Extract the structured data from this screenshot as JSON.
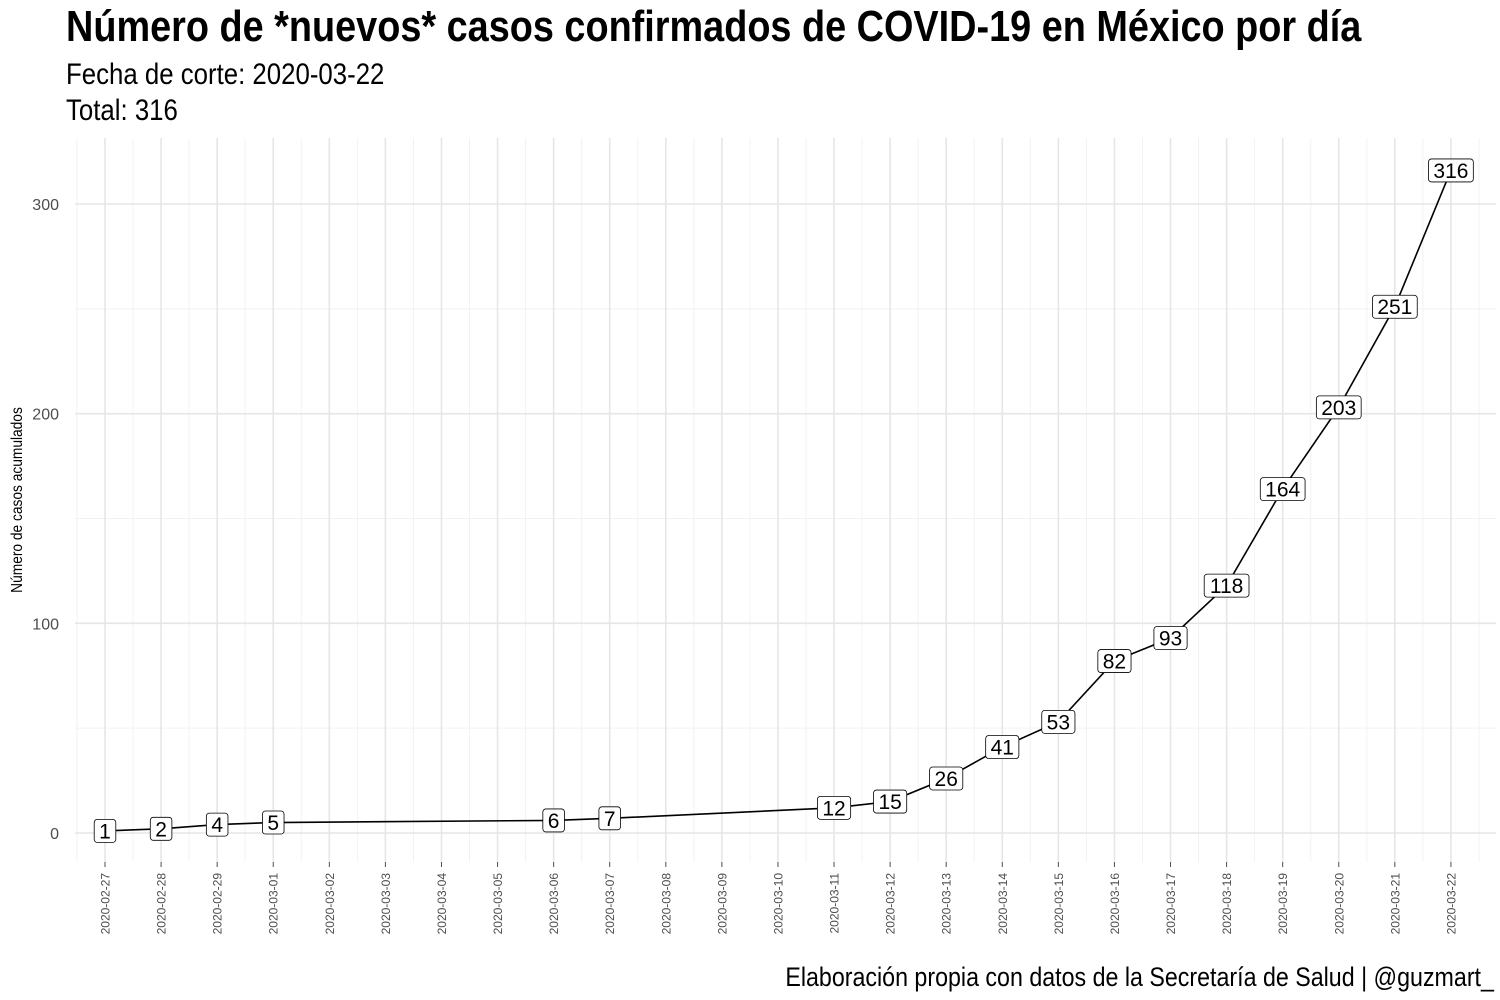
{
  "chart_data": {
    "type": "line",
    "title": "Número de *nuevos* casos confirmados de COVID-19 en México por día",
    "subtitle_fecha": "Fecha de corte: 2020-03-22",
    "subtitle_total": "Total: 316",
    "caption": "Elaboración propia con datos de la Secretaría de Salud | @guzmart_",
    "xlabel": "",
    "ylabel": "Número de casos acumulados",
    "x_ticks": [
      "2020-02-27",
      "2020-02-28",
      "2020-02-29",
      "2020-03-01",
      "2020-03-02",
      "2020-03-03",
      "2020-03-04",
      "2020-03-05",
      "2020-03-06",
      "2020-03-07",
      "2020-03-08",
      "2020-03-09",
      "2020-03-10",
      "2020-03-11",
      "2020-03-12",
      "2020-03-13",
      "2020-03-14",
      "2020-03-15",
      "2020-03-16",
      "2020-03-17",
      "2020-03-18",
      "2020-03-19",
      "2020-03-20",
      "2020-03-21",
      "2020-03-22"
    ],
    "y_ticks": [
      0,
      100,
      200,
      300
    ],
    "ylim": [
      -14,
      331
    ],
    "grid": true,
    "series": [
      {
        "points": [
          {
            "x": "2020-02-27",
            "y": 1
          },
          {
            "x": "2020-02-28",
            "y": 2
          },
          {
            "x": "2020-02-29",
            "y": 4
          },
          {
            "x": "2020-03-01",
            "y": 5
          },
          {
            "x": "2020-03-06",
            "y": 6
          },
          {
            "x": "2020-03-07",
            "y": 7
          },
          {
            "x": "2020-03-11",
            "y": 12
          },
          {
            "x": "2020-03-12",
            "y": 15
          },
          {
            "x": "2020-03-13",
            "y": 26
          },
          {
            "x": "2020-03-14",
            "y": 41
          },
          {
            "x": "2020-03-15",
            "y": 53
          },
          {
            "x": "2020-03-16",
            "y": 82
          },
          {
            "x": "2020-03-17",
            "y": 93
          },
          {
            "x": "2020-03-18",
            "y": 118
          },
          {
            "x": "2020-03-19",
            "y": 164
          },
          {
            "x": "2020-03-20",
            "y": 203
          },
          {
            "x": "2020-03-21",
            "y": 251
          },
          {
            "x": "2020-03-22",
            "y": 316
          }
        ]
      }
    ]
  }
}
